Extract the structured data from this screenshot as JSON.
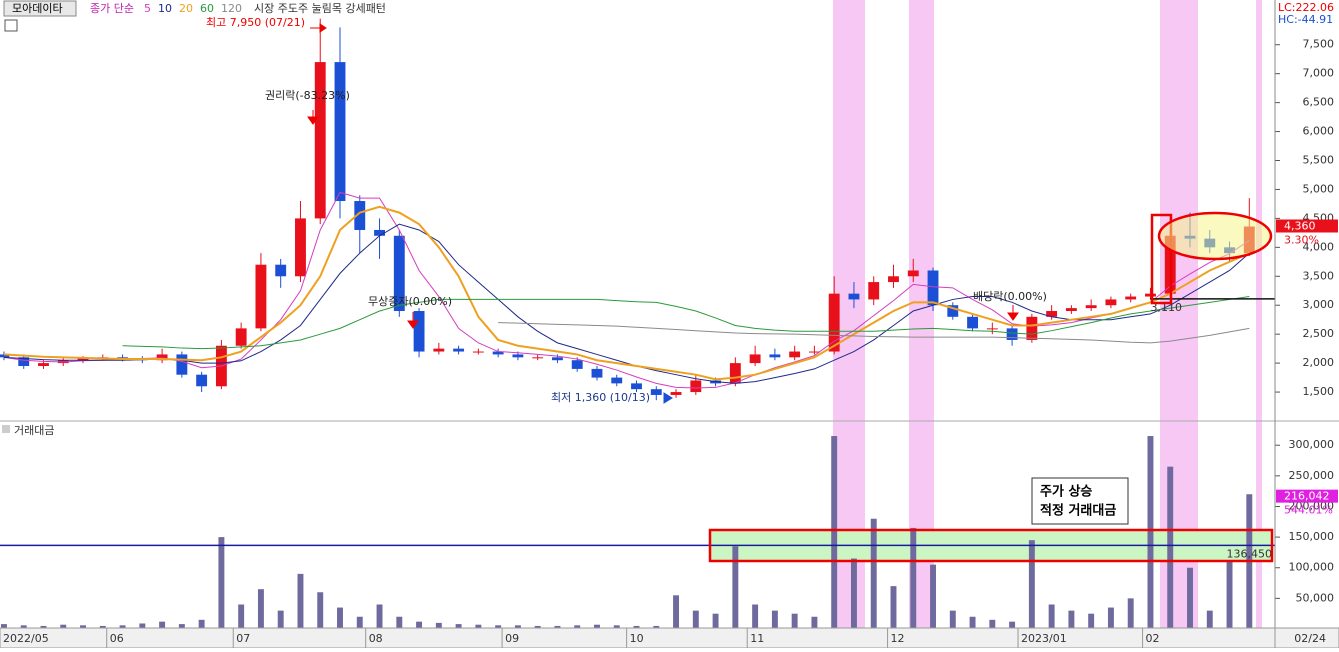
{
  "header": {
    "stock": "모아데이타",
    "ma_label": "종가 단순",
    "ma_periods": [
      "5",
      "10",
      "20",
      "60",
      "120"
    ],
    "pattern": "시장 주도주 눌림목 강세패턴",
    "lc": "LC:222.06",
    "hc": "HC:-44.91"
  },
  "chart_data": [
    {
      "type": "candlestick",
      "up_color": "#e8101a",
      "down_color": "#1a4fd6",
      "open": [
        2150,
        2100,
        1950,
        2000,
        2050,
        2080,
        2100,
        2080,
        2050,
        2150,
        1800,
        1600,
        2300,
        2600,
        3700,
        3500,
        4500,
        7200,
        4800,
        4300,
        4200,
        2900,
        2200,
        2250,
        2200,
        2200,
        2150,
        2100,
        2100,
        2050,
        1900,
        1750,
        1650,
        1550,
        1450,
        1500,
        1700,
        1650,
        2000,
        2150,
        2100,
        2200,
        2200,
        3200,
        3100,
        3400,
        3500,
        3600,
        3000,
        2800,
        2600,
        2600,
        2400,
        2800,
        2900,
        2950,
        3000,
        3100,
        3150,
        3200,
        4200,
        4150,
        4000,
        3900
      ],
      "high": [
        2200,
        2150,
        2050,
        2100,
        2120,
        2150,
        2150,
        2120,
        2250,
        2200,
        1850,
        2400,
        2700,
        3900,
        3800,
        4800,
        7950,
        7800,
        4900,
        4500,
        4300,
        2950,
        2350,
        2300,
        2250,
        2250,
        2200,
        2150,
        2150,
        2100,
        1950,
        1800,
        1700,
        1600,
        1550,
        1800,
        1750,
        2100,
        2300,
        2250,
        2300,
        2300,
        3500,
        3400,
        3500,
        3700,
        3800,
        3650,
        3050,
        2850,
        2700,
        2650,
        2850,
        3000,
        3000,
        3100,
        3150,
        3200,
        3300,
        4500,
        4600,
        4300,
        4100,
        4850
      ],
      "low": [
        2050,
        1900,
        1900,
        1950,
        2000,
        2050,
        2030,
        2000,
        2000,
        1750,
        1500,
        1550,
        2250,
        2550,
        3300,
        3400,
        4400,
        4500,
        3900,
        3800,
        2800,
        2100,
        2150,
        2150,
        2150,
        2100,
        2050,
        2050,
        2000,
        1850,
        1700,
        1600,
        1500,
        1360,
        1400,
        1450,
        1600,
        1600,
        1950,
        2050,
        2050,
        2150,
        2150,
        2950,
        3000,
        3300,
        3400,
        2900,
        2750,
        2550,
        2500,
        2300,
        2350,
        2750,
        2850,
        2900,
        2950,
        3050,
        3100,
        3150,
        4000,
        3900,
        3750,
        3850
      ],
      "close": [
        2100,
        1950,
        2000,
        2050,
        2080,
        2100,
        2080,
        2050,
        2150,
        1800,
        1600,
        2300,
        2600,
        3700,
        3500,
        4500,
        7200,
        4800,
        4300,
        4200,
        2900,
        2200,
        2250,
        2200,
        2200,
        2150,
        2100,
        2100,
        2050,
        1900,
        1750,
        1650,
        1550,
        1450,
        1500,
        1700,
        1650,
        2000,
        2150,
        2100,
        2200,
        2200,
        3200,
        3100,
        3400,
        3500,
        3600,
        3000,
        2800,
        2600,
        2600,
        2400,
        2800,
        2900,
        2950,
        3000,
        3100,
        3150,
        3200,
        4200,
        4150,
        4000,
        3900,
        4360
      ],
      "series": [
        {
          "name": "5",
          "color": "#d63cc0",
          "values": [
            2100,
            2050,
            2030,
            2020,
            2040,
            2050,
            2070,
            2080,
            2090,
            2030,
            1920,
            1950,
            2070,
            2400,
            2750,
            3250,
            4300,
            4950,
            4850,
            4850,
            4300,
            3600,
            3150,
            2600,
            2350,
            2200,
            2180,
            2150,
            2120,
            2070,
            1980,
            1880,
            1760,
            1650,
            1580,
            1570,
            1580,
            1660,
            1800,
            1920,
            2020,
            2130,
            2380,
            2560,
            2820,
            3080,
            3360,
            3320,
            3300,
            3100,
            2920,
            2680,
            2640,
            2660,
            2700,
            2780,
            2850,
            2950,
            3050,
            3330,
            3540,
            3740,
            3890,
            4120
          ]
        },
        {
          "name": "10",
          "color": "#1f2a8a",
          "values": [
            2100,
            2080,
            2060,
            2050,
            2050,
            2050,
            2050,
            2060,
            2070,
            2050,
            2000,
            2000,
            2040,
            2200,
            2400,
            2650,
            3100,
            3550,
            3900,
            4200,
            4400,
            4300,
            4100,
            3700,
            3400,
            3100,
            2800,
            2550,
            2350,
            2250,
            2150,
            2050,
            1950,
            1870,
            1800,
            1730,
            1680,
            1650,
            1680,
            1750,
            1820,
            1900,
            2050,
            2200,
            2400,
            2650,
            2900,
            3000,
            3100,
            3150,
            3150,
            3050,
            2900,
            2800,
            2750,
            2750,
            2750,
            2800,
            2850,
            3000,
            3200,
            3400,
            3600,
            3900
          ]
        },
        {
          "name": "20",
          "color": "#eea020",
          "values": [
            2150,
            2130,
            2110,
            2100,
            2090,
            2080,
            2070,
            2070,
            2070,
            2060,
            2050,
            2100,
            2200,
            2450,
            2700,
            3000,
            3500,
            4300,
            4600,
            4700,
            4600,
            4400,
            4000,
            3500,
            2800,
            2400,
            2300,
            2250,
            2200,
            2150,
            2050,
            2000,
            1950,
            1900,
            1850,
            1800,
            1720,
            1750,
            1800,
            1900,
            2000,
            2100,
            2300,
            2500,
            2700,
            2900,
            3050,
            3050,
            2950,
            2850,
            2750,
            2650,
            2650,
            2700,
            2750,
            2800,
            2850,
            2950,
            3050,
            3200,
            3400,
            3600,
            3750,
            3900
          ]
        },
        {
          "name": "60",
          "color": "#2a9a3a",
          "values": [
            null,
            null,
            null,
            null,
            null,
            null,
            2300,
            2290,
            2280,
            2260,
            2250,
            2260,
            2280,
            2300,
            2350,
            2400,
            2500,
            2600,
            2750,
            2900,
            3000,
            3050,
            3100,
            3100,
            3100,
            3100,
            3100,
            3100,
            3100,
            3100,
            3100,
            3080,
            3060,
            3050,
            2980,
            2900,
            2780,
            2650,
            2600,
            2570,
            2550,
            2550,
            2550,
            2550,
            2550,
            2570,
            2590,
            2600,
            2580,
            2560,
            2550,
            2520,
            2500,
            2560,
            2630,
            2700,
            2780,
            2850,
            2900,
            2950,
            3000,
            3050,
            3100,
            3150
          ]
        },
        {
          "name": "120",
          "color": "#8a8a8a",
          "values": [
            null,
            null,
            null,
            null,
            null,
            null,
            null,
            null,
            null,
            null,
            null,
            null,
            null,
            null,
            null,
            null,
            null,
            null,
            null,
            null,
            null,
            null,
            null,
            null,
            null,
            2700,
            2690,
            2680,
            2670,
            2660,
            2650,
            2640,
            2620,
            2600,
            2580,
            2560,
            2540,
            2520,
            2510,
            2505,
            2500,
            2490,
            2480,
            2470,
            2460,
            2455,
            2450,
            2450,
            2450,
            2450,
            2450,
            2440,
            2430,
            2420,
            2410,
            2400,
            2380,
            2360,
            2350,
            2380,
            2430,
            2480,
            2540,
            2600
          ]
        }
      ],
      "ylim": [
        1000,
        8100
      ],
      "yticks": [
        {
          "value": 1500,
          "label": "1,500"
        },
        {
          "value": 2000,
          "label": "2,000"
        },
        {
          "value": 2500,
          "label": "2,500"
        },
        {
          "value": 3000,
          "label": "3,000"
        },
        {
          "value": 3500,
          "label": "3,500"
        },
        {
          "value": 4000,
          "label": "4,000"
        },
        {
          "value": 4500,
          "label": "4,500"
        },
        {
          "value": 5000,
          "label": "5,000"
        },
        {
          "value": 5500,
          "label": "5,500"
        },
        {
          "value": 6000,
          "label": "6,000"
        },
        {
          "value": 6500,
          "label": "6,500"
        },
        {
          "value": 7000,
          "label": "7,000"
        },
        {
          "value": 7500,
          "label": "7,500"
        }
      ],
      "hline": {
        "value": 3110,
        "label": "3,110"
      },
      "last": {
        "value": 4360,
        "label": "4,360"
      },
      "last_change": "3.30%",
      "annotations": [
        "최고 7,950 (07/21)",
        "권리락(-83.23%)",
        "무상증자(0.00%)",
        "최저 1,360 (10/13)",
        "배당락(0.00%)"
      ]
    },
    {
      "type": "bar",
      "title": "거래대금",
      "color": "#6e6a9e",
      "values": [
        8000,
        6000,
        5000,
        7000,
        6000,
        5000,
        6000,
        9000,
        12000,
        8000,
        15000,
        150000,
        40000,
        65000,
        30000,
        90000,
        60000,
        35000,
        20000,
        40000,
        20000,
        12000,
        10000,
        8000,
        7000,
        6000,
        6000,
        5000,
        5000,
        6000,
        7000,
        6000,
        5000,
        5000,
        55000,
        30000,
        25000,
        135000,
        40000,
        30000,
        25000,
        20000,
        315000,
        115000,
        180000,
        70000,
        165000,
        105000,
        30000,
        20000,
        15000,
        12000,
        145000,
        40000,
        30000,
        25000,
        35000,
        50000,
        315000,
        265000,
        100000,
        30000,
        110000,
        220000
      ],
      "ylim": [
        0,
        333000
      ],
      "yticks": [
        {
          "value": 50000,
          "label": "50,000"
        },
        {
          "value": 100000,
          "label": "100,000"
        },
        {
          "value": 150000,
          "label": "150,000"
        },
        {
          "value": 200000,
          "label": "200,000"
        },
        {
          "value": 250000,
          "label": "250,000"
        },
        {
          "value": 300000,
          "label": "300,000"
        }
      ],
      "hline": {
        "value": 136450,
        "label": "136,450"
      },
      "last": {
        "value": 216042,
        "label": "216,042"
      },
      "last_change": "544.01%",
      "note": [
        "주가 상승",
        "적정 거래대금"
      ],
      "xlim": [
        -0.2,
        64.3
      ],
      "xticks": [
        {
          "value": -0.2,
          "label": "2022/05"
        },
        {
          "value": 5.2,
          "label": "06"
        },
        {
          "value": 11.6,
          "label": "07"
        },
        {
          "value": 18.3,
          "label": "08"
        },
        {
          "value": 25.2,
          "label": "09"
        },
        {
          "value": 31.5,
          "label": "10"
        },
        {
          "value": 37.6,
          "label": "11"
        },
        {
          "value": 44.7,
          "label": "12"
        },
        {
          "value": 51.3,
          "label": "2023/01"
        },
        {
          "value": 57.6,
          "label": "02"
        },
        {
          "value": 64.3,
          "label": "02/24"
        }
      ]
    }
  ]
}
